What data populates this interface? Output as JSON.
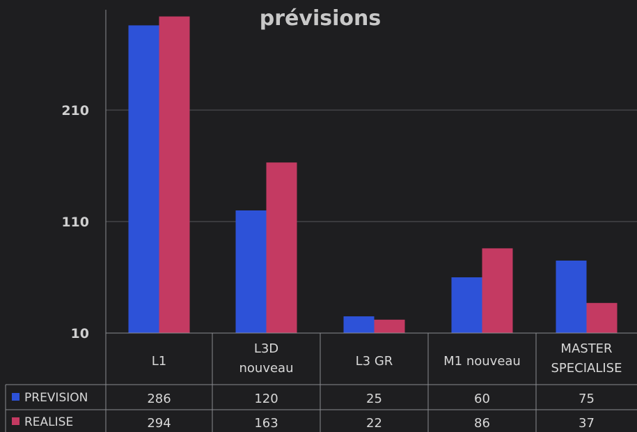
{
  "chart_data": {
    "type": "bar",
    "title": "prévisions",
    "categories": [
      [
        "L1"
      ],
      [
        "L3D",
        "nouveau"
      ],
      [
        "L3 GR"
      ],
      [
        "M1 nouveau"
      ],
      [
        "MASTER",
        "SPECIALISE"
      ]
    ],
    "series": [
      {
        "name": "PREVISION",
        "color": "#2d52d8",
        "values": [
          286,
          120,
          25,
          60,
          75
        ]
      },
      {
        "name": "REALISE",
        "color": "#c43a62",
        "values": [
          294,
          163,
          22,
          86,
          37
        ]
      }
    ],
    "y_ticks": [
      10,
      110,
      210
    ],
    "ylim": [
      10,
      310
    ],
    "grid": true,
    "legend": "data-table"
  }
}
